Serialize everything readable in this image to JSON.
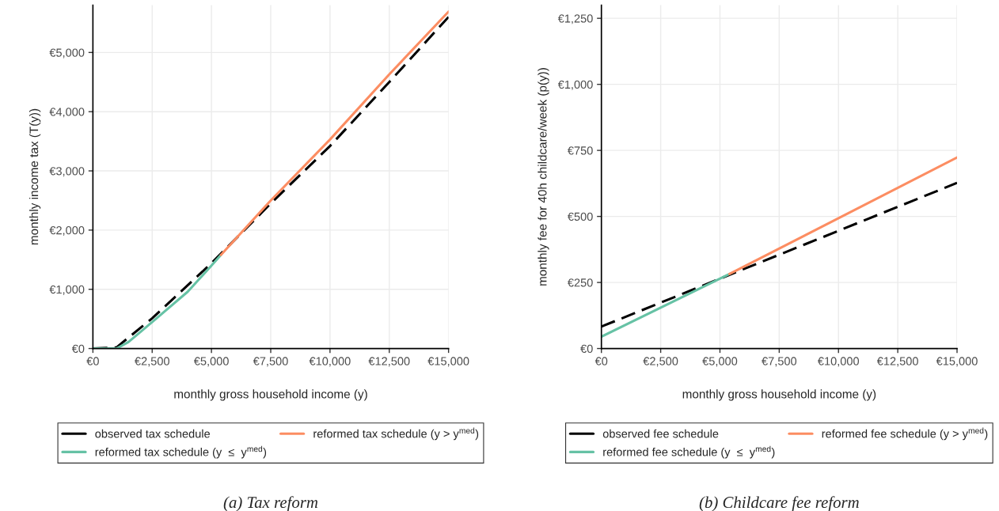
{
  "chart_data": [
    {
      "type": "line",
      "title": "(a) Tax reform",
      "xlabel": "monthly gross household income (y)",
      "ylabel": "monthly income tax (T(y))",
      "xlim": [
        0,
        15000
      ],
      "ylim": [
        0,
        5800
      ],
      "xticks": [
        {
          "value": 0,
          "label": "€0"
        },
        {
          "value": 2500,
          "label": "€2,500"
        },
        {
          "value": 5000,
          "label": "€5,000"
        },
        {
          "value": 7500,
          "label": "€7,500"
        },
        {
          "value": 10000,
          "label": "€10,000"
        },
        {
          "value": 12500,
          "label": "€12,500"
        },
        {
          "value": 15000,
          "label": "€15,000"
        }
      ],
      "yticks": [
        {
          "value": 0,
          "label": "€0"
        },
        {
          "value": 1000,
          "label": "€1,000"
        },
        {
          "value": 2000,
          "label": "€2,000"
        },
        {
          "value": 3000,
          "label": "€3,000"
        },
        {
          "value": 4000,
          "label": "€4,000"
        },
        {
          "value": 5000,
          "label": "€5,000"
        }
      ],
      "grid": true,
      "legend": "bottom",
      "series": [
        {
          "name": "observed tax schedule",
          "color": "#000000",
          "line_style": "dashed",
          "x": [
            0,
            1000,
            2500,
            5000,
            7500,
            10000,
            12500,
            15000
          ],
          "values": [
            0,
            20,
            510,
            1440,
            2450,
            3420,
            4500,
            5600
          ]
        },
        {
          "name": "reformed tax schedule (y  ≤  y$^{med}$)",
          "color": "#66c2a5",
          "line_style": "solid",
          "x": [
            0,
            1000,
            1500,
            2500,
            4000,
            5000,
            5400
          ],
          "values": [
            0,
            0,
            110,
            447,
            960,
            1400,
            1580
          ]
        },
        {
          "name": "reformed tax schedule (y > y$^{med}$)",
          "color": "#fc8d62",
          "line_style": "solid",
          "x": [
            5400,
            7500,
            10000,
            12500,
            15000
          ],
          "values": [
            1580,
            2500,
            3530,
            4630,
            5690
          ]
        }
      ]
    },
    {
      "type": "line",
      "title": "(b) Childcare fee reform",
      "xlabel": "monthly gross household income (y)",
      "ylabel": "monthly fee for 40h childcare/week (p(y))",
      "xlim": [
        0,
        15000
      ],
      "ylim": [
        0,
        1300
      ],
      "xticks": [
        {
          "value": 0,
          "label": "€0"
        },
        {
          "value": 2500,
          "label": "€2,500"
        },
        {
          "value": 5000,
          "label": "€5,000"
        },
        {
          "value": 7500,
          "label": "€7,500"
        },
        {
          "value": 10000,
          "label": "€10,000"
        },
        {
          "value": 12500,
          "label": "€12,500"
        },
        {
          "value": 15000,
          "label": "€15,000"
        }
      ],
      "yticks": [
        {
          "value": 0,
          "label": "€0"
        },
        {
          "value": 250,
          "label": "€250"
        },
        {
          "value": 500,
          "label": "€500"
        },
        {
          "value": 750,
          "label": "€750"
        },
        {
          "value": 1000,
          "label": "€1,000"
        },
        {
          "value": 1250,
          "label": "€1,250"
        }
      ],
      "grid": true,
      "legend": "bottom",
      "series": [
        {
          "name": "observed fee schedule",
          "color": "#000000",
          "line_style": "dashed",
          "x": [
            0,
            15000
          ],
          "values": [
            83,
            627
          ]
        },
        {
          "name": "reformed fee schedule (y  ≤  y$^{med}$)",
          "color": "#66c2a5",
          "line_style": "solid",
          "x": [
            0,
            5400
          ],
          "values": [
            45,
            282
          ]
        },
        {
          "name": "reformed fee schedule (y > y$^{med}$)",
          "color": "#fc8d62",
          "line_style": "solid",
          "x": [
            5400,
            15000
          ],
          "values": [
            282,
            723
          ]
        }
      ]
    }
  ]
}
